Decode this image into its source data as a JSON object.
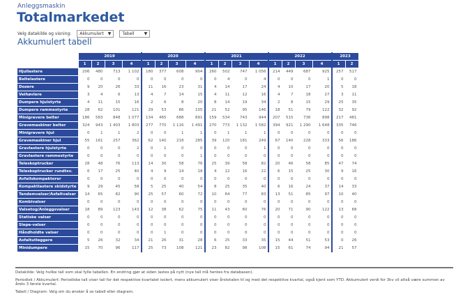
{
  "header": {
    "subtitle": "Anleggsmaskin",
    "title": "Totalmarkedet"
  },
  "controls": {
    "label": "Velg datakilde og visning:",
    "source": "Akkumulert",
    "view": "Tabell",
    "arrow": "▼"
  },
  "section_title": "Akkumulert tabell",
  "table": {
    "years": [
      "2019",
      "2020",
      "2021",
      "2022",
      "2023"
    ],
    "quarters": [
      [
        "1",
        "2",
        "3",
        "4"
      ],
      [
        "1",
        "2",
        "3",
        "4"
      ],
      [
        "1",
        "2",
        "3",
        "4"
      ],
      [
        "1",
        "2",
        "3",
        "4"
      ],
      [
        "1",
        "2"
      ]
    ],
    "rows": [
      {
        "label": "Hjullastere",
        "values": [
          "206",
          "480",
          "713",
          "1 102",
          "180",
          "377",
          "608",
          "904",
          "260",
          "502",
          "747",
          "1 056",
          "214",
          "449",
          "687",
          "925",
          "257",
          "517"
        ]
      },
      {
        "label": "Beltelastere",
        "values": [
          "0",
          "0",
          "0",
          "0",
          "0",
          "0",
          "0",
          "0",
          "0",
          "4",
          "0",
          "4",
          "0",
          "0",
          "0",
          "1",
          "0",
          "0"
        ]
      },
      {
        "label": "Dozere",
        "values": [
          "9",
          "20",
          "26",
          "33",
          "11",
          "16",
          "23",
          "31",
          "4",
          "14",
          "17",
          "24",
          "4",
          "10",
          "17",
          "20",
          "5",
          "18"
        ]
      },
      {
        "label": "Veihøvlere",
        "values": [
          "3",
          "4",
          "6",
          "13",
          "4",
          "7",
          "14",
          "15",
          "4",
          "11",
          "12",
          "16",
          "4",
          "7",
          "18",
          "27",
          "3",
          "11"
        ]
      },
      {
        "label": "Dumpere hjulstyrte",
        "values": [
          "4",
          "11",
          "15",
          "16",
          "2",
          "6",
          "8",
          "20",
          "8",
          "14",
          "19",
          "34",
          "2",
          "8",
          "15",
          "29",
          "25",
          "35"
        ]
      },
      {
        "label": "Dumpere rammestyrte",
        "values": [
          "28",
          "62",
          "101",
          "121",
          "29",
          "53",
          "86",
          "105",
          "21",
          "52",
          "95",
          "146",
          "18",
          "51",
          "79",
          "122",
          "32",
          "92"
        ]
      },
      {
        "label": "Minigravere belter",
        "values": [
          "186",
          "583",
          "848",
          "1 077",
          "134",
          "465",
          "688",
          "891",
          "159",
          "534",
          "743",
          "944",
          "207",
          "515",
          "736",
          "898",
          "217",
          "481"
        ]
      },
      {
        "label": "Gravemaskiner belter",
        "values": [
          "324",
          "943",
          "1 403",
          "1 803",
          "277",
          "770",
          "1 116",
          "1 491",
          "270",
          "773",
          "1 132",
          "1 582",
          "394",
          "921",
          "1 290",
          "1 648",
          "335",
          "746"
        ]
      },
      {
        "label": "Minigravere hjul",
        "values": [
          "0",
          "1",
          "1",
          "2",
          "0",
          "0",
          "1",
          "1",
          "0",
          "1",
          "1",
          "1",
          "0",
          "0",
          "0",
          "0",
          "0",
          "0"
        ]
      },
      {
        "label": "Gravemaskiner hjul",
        "values": [
          "55",
          "161",
          "257",
          "362",
          "62",
          "140",
          "218",
          "285",
          "39",
          "120",
          "181",
          "249",
          "67",
          "140",
          "228",
          "333",
          "56",
          "186"
        ]
      },
      {
        "label": "Gravlastere hjulstyrte",
        "values": [
          "0",
          "0",
          "0",
          "2",
          "0",
          "1",
          "0",
          "0",
          "0",
          "0",
          "0",
          "1",
          "0",
          "0",
          "0",
          "0",
          "0",
          "0"
        ]
      },
      {
        "label": "Gravlastere rammestyrte",
        "values": [
          "0",
          "0",
          "0",
          "0",
          "0",
          "0",
          "0",
          "1",
          "0",
          "0",
          "0",
          "0",
          "0",
          "0",
          "0",
          "0",
          "0",
          "0"
        ]
      },
      {
        "label": "Teleskoptrucker",
        "values": [
          "28",
          "48",
          "76",
          "113",
          "14",
          "30",
          "58",
          "76",
          "25",
          "39",
          "58",
          "82",
          "20",
          "46",
          "58",
          "85",
          "47",
          "74"
        ]
      },
      {
        "label": "Teleskoptrucker rundtsv.",
        "values": [
          "6",
          "17",
          "25",
          "40",
          "4",
          "9",
          "14",
          "18",
          "4",
          "12",
          "16",
          "22",
          "6",
          "15",
          "25",
          "30",
          "9",
          "16"
        ]
      },
      {
        "label": "Avfallskompaktorer",
        "values": [
          "0",
          "0",
          "0",
          "0",
          "0",
          "0",
          "0",
          "0",
          "0",
          "0",
          "0",
          "0",
          "0",
          "0",
          "0",
          "0",
          "0",
          "0"
        ]
      },
      {
        "label": "Kompaktlastere skidstyrte",
        "values": [
          "9",
          "29",
          "45",
          "58",
          "5",
          "25",
          "40",
          "54",
          "8",
          "25",
          "35",
          "40",
          "6",
          "16",
          "24",
          "37",
          "14",
          "33"
        ]
      },
      {
        "label": "Tandemvalser/Asfaltvalser",
        "values": [
          "14",
          "65",
          "82",
          "90",
          "25",
          "57",
          "60",
          "72",
          "10",
          "64",
          "77",
          "83",
          "13",
          "51",
          "85",
          "97",
          "10",
          "40"
        ]
      },
      {
        "label": "Kombivalser",
        "values": [
          "0",
          "0",
          "0",
          "0",
          "0",
          "0",
          "0",
          "0",
          "0",
          "0",
          "0",
          "0",
          "0",
          "0",
          "0",
          "0",
          "0",
          "0"
        ]
      },
      {
        "label": "Valsetog/Anleggsvalser",
        "values": [
          "18",
          "89",
          "123",
          "143",
          "12",
          "38",
          "62",
          "75",
          "11",
          "43",
          "60",
          "76",
          "20",
          "71",
          "90",
          "122",
          "13",
          "68"
        ]
      },
      {
        "label": "Statiske valser",
        "values": [
          "0",
          "0",
          "0",
          "0",
          "0",
          "0",
          "0",
          "0",
          "0",
          "0",
          "0",
          "0",
          "0",
          "0",
          "0",
          "0",
          "0",
          "0"
        ]
      },
      {
        "label": "Slepe-valser",
        "values": [
          "0",
          "0",
          "0",
          "0",
          "0",
          "0",
          "0",
          "0",
          "0",
          "0",
          "0",
          "0",
          "0",
          "0",
          "0",
          "0",
          "0",
          "0"
        ]
      },
      {
        "label": "Håndholdte valser",
        "values": [
          "0",
          "0",
          "0",
          "0",
          "0",
          "1",
          "0",
          "0",
          "0",
          "0",
          "0",
          "0",
          "0",
          "0",
          "0",
          "0",
          "0",
          "0"
        ]
      },
      {
        "label": "Asfaltutleggere",
        "values": [
          "5",
          "26",
          "32",
          "34",
          "21",
          "26",
          "31",
          "28",
          "6",
          "25",
          "33",
          "35",
          "15",
          "44",
          "51",
          "53",
          "0",
          "26"
        ]
      },
      {
        "label": "Minidumpere",
        "values": [
          "15",
          "70",
          "96",
          "117",
          "25",
          "73",
          "108",
          "121",
          "23",
          "82",
          "98",
          "108",
          "15",
          "61",
          "74",
          "94",
          "21",
          "57"
        ]
      }
    ]
  },
  "footer": [
    "Datakilde: Velg hvilke tall som skal fylle tabellen. En endring gjør at siden lastes på nytt (nye tall må hentes fra databasen).",
    "Periodisk / Akkumulert: Periodiske tall viser tall for det respektive kvartalet isolert, mens akkumulert viser årstotalen til og med det respektive kvartal, også kjent som YTD. Akkumulert verdi for 3kv vil altså være summen av årets 3 første kvartal.",
    "Tabell / Diagram: Velg om du ønsker å se tabell eller diagram."
  ],
  "colors": {
    "header_blue": "#2b4a9c",
    "title_blue": "#2d5aa0"
  }
}
